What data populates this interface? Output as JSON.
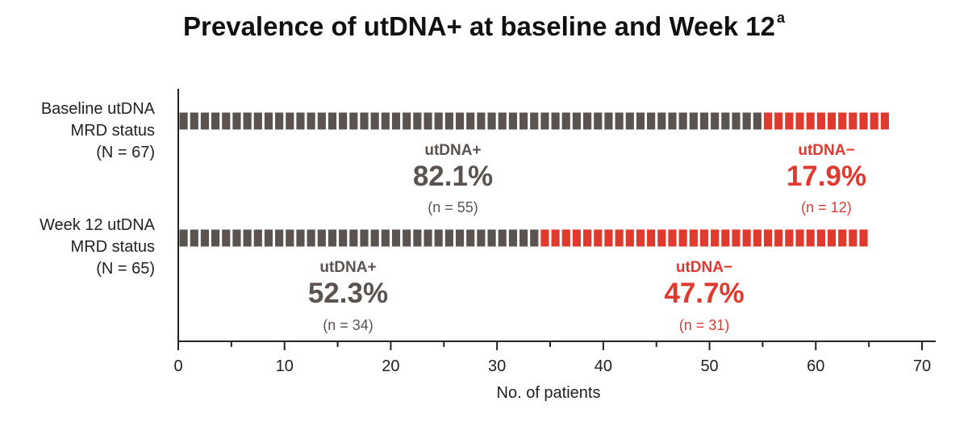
{
  "title": "Prevalence of utDNA+ at baseline and Week 12",
  "title_superscript": "a",
  "chart_data": {
    "type": "bar",
    "orientation": "horizontal",
    "stacked": true,
    "categories": [
      {
        "line1": "Baseline utDNA",
        "line2": "MRD status",
        "line3": "(N = 67)"
      },
      {
        "line1": "Week 12 utDNA",
        "line2": "MRD status",
        "line3": "(N = 65)"
      }
    ],
    "series": [
      {
        "name": "utDNA+",
        "color": "#5a5350",
        "values": [
          55,
          34
        ],
        "percents": [
          "82.1%",
          "52.3%"
        ],
        "counts": [
          "(n = 55)",
          "(n = 34)"
        ]
      },
      {
        "name": "utDNA−",
        "color": "#e03a2e",
        "values": [
          12,
          31
        ],
        "percents": [
          "17.9%",
          "47.7%"
        ],
        "counts": [
          "(n = 12)",
          "(n = 31)"
        ]
      }
    ],
    "unit_per_square": 1,
    "xlabel": "No. of patients",
    "xlim": [
      0,
      70
    ],
    "xticks": [
      "0",
      "10",
      "20",
      "30",
      "40",
      "50",
      "60",
      "70"
    ],
    "grid": false
  }
}
